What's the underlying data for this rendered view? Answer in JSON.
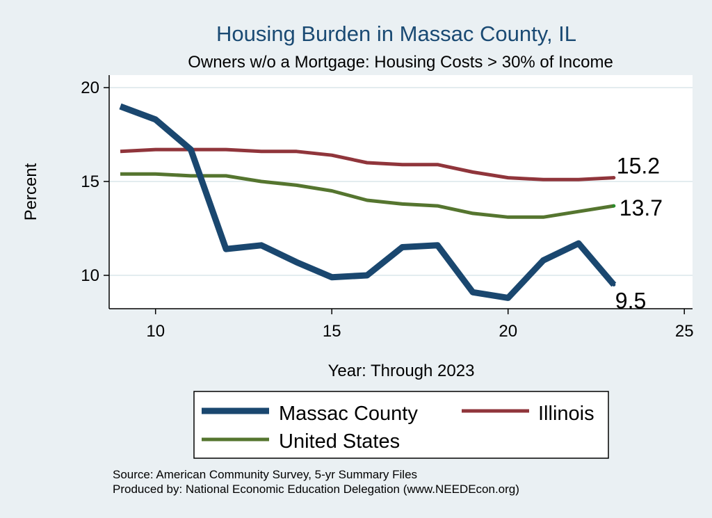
{
  "chart_data": {
    "type": "line",
    "title": "Housing Burden in Massac County, IL",
    "subtitle": "Owners w/o a Mortgage: Housing Costs > 30% of Income",
    "xlabel": "Year: Through 2023",
    "ylabel": "Percent",
    "xlim": [
      9,
      25
    ],
    "ylim": [
      8.2,
      20.6
    ],
    "x_ticks": [
      "10",
      "15",
      "20",
      "25"
    ],
    "y_ticks": [
      "10",
      "15",
      "20"
    ],
    "x": [
      9,
      10,
      11,
      12,
      13,
      14,
      15,
      16,
      17,
      18,
      19,
      20,
      21,
      22,
      23
    ],
    "series": [
      {
        "name": "Massac County",
        "color": "#1a476f",
        "values": [
          19.0,
          18.3,
          16.7,
          11.4,
          11.6,
          10.7,
          9.9,
          10.0,
          11.5,
          11.6,
          9.1,
          8.8,
          10.8,
          11.7,
          9.5
        ],
        "end_label": "9.5"
      },
      {
        "name": "Illinois",
        "color": "#90353b",
        "values": [
          16.6,
          16.7,
          16.7,
          16.7,
          16.6,
          16.6,
          16.4,
          16.0,
          15.9,
          15.9,
          15.5,
          15.2,
          15.1,
          15.1,
          15.2
        ],
        "end_label": "15.2"
      },
      {
        "name": "United States",
        "color": "#55752f",
        "values": [
          15.4,
          15.4,
          15.3,
          15.3,
          15.0,
          14.8,
          14.5,
          14.0,
          13.8,
          13.7,
          13.3,
          13.1,
          13.1,
          13.4,
          13.7
        ],
        "end_label": "13.7"
      }
    ],
    "legend": [
      "Massac County",
      "Illinois",
      "United States"
    ],
    "grid": true
  },
  "notes": {
    "source": "Source: American Community Survey, 5-yr Summary Files",
    "produced": "Produced by: National Economic Education Delegation (www.NEEDEcon.org)"
  }
}
